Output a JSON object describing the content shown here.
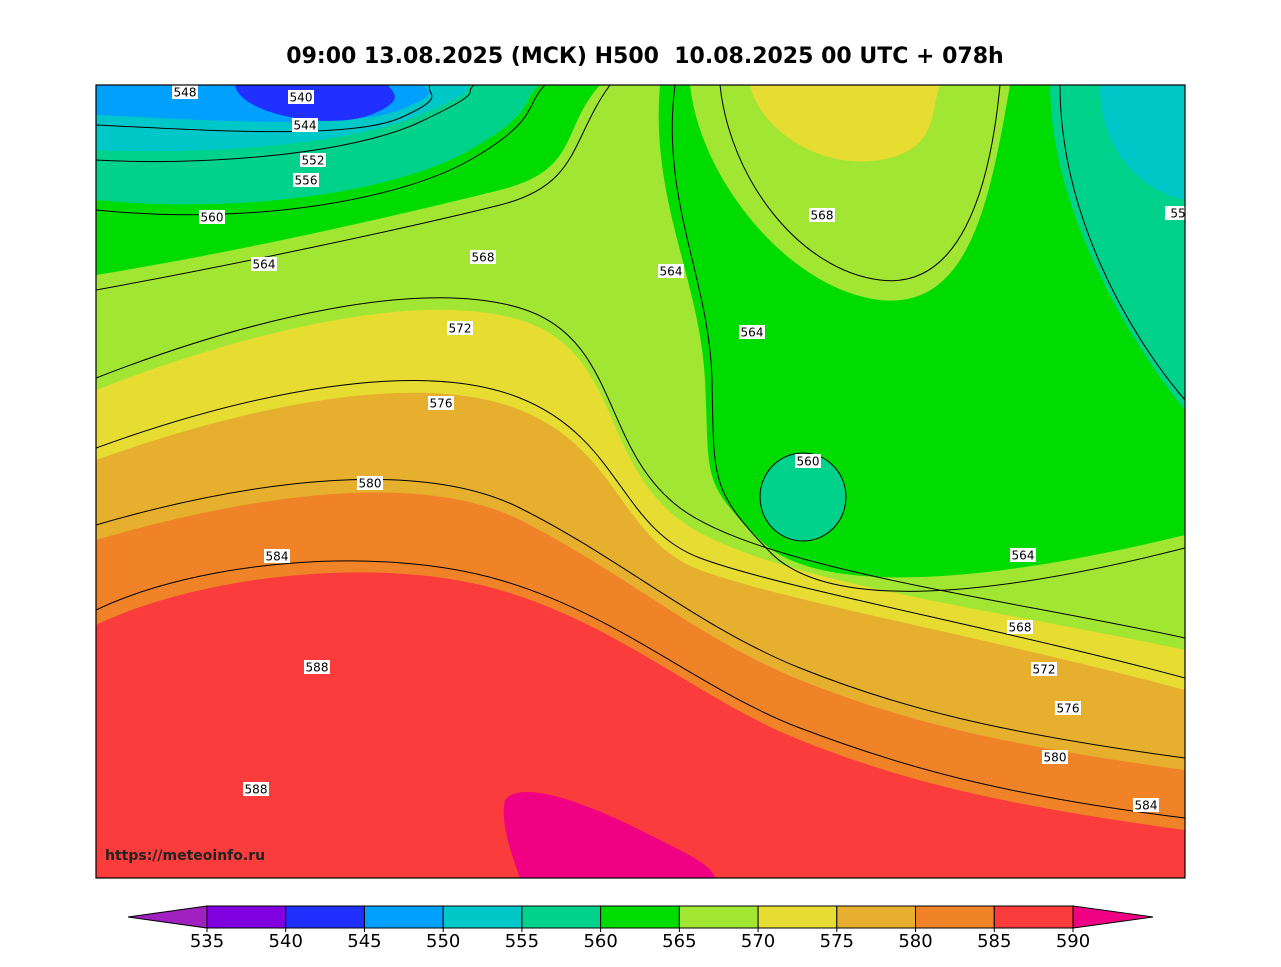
{
  "title": "09:00 13.08.2025 (МСК) H500  10.08.2025 00 UTC + 078h",
  "watermark": "https://meteoinfo.ru",
  "contour_labels": [
    "548",
    "540",
    "544",
    "552",
    "556",
    "560",
    "564",
    "568",
    "572",
    "576",
    "580",
    "584",
    "588",
    "588",
    "564",
    "568",
    "564",
    "560",
    "564",
    "568",
    "572",
    "576",
    "580",
    "584",
    "55"
  ],
  "colorbar": {
    "ticks": [
      535,
      540,
      545,
      550,
      555,
      560,
      565,
      570,
      575,
      580,
      585,
      590
    ],
    "colors": [
      "#8000e0",
      "#2030ff",
      "#00a0ff",
      "#00c8c8",
      "#00d28c",
      "#00dc00",
      "#a0e632",
      "#e6dc32",
      "#e6af2d",
      "#f08228",
      "#fa3c3c"
    ],
    "under_color": "#a020c0",
    "over_color": "#f00082"
  }
}
